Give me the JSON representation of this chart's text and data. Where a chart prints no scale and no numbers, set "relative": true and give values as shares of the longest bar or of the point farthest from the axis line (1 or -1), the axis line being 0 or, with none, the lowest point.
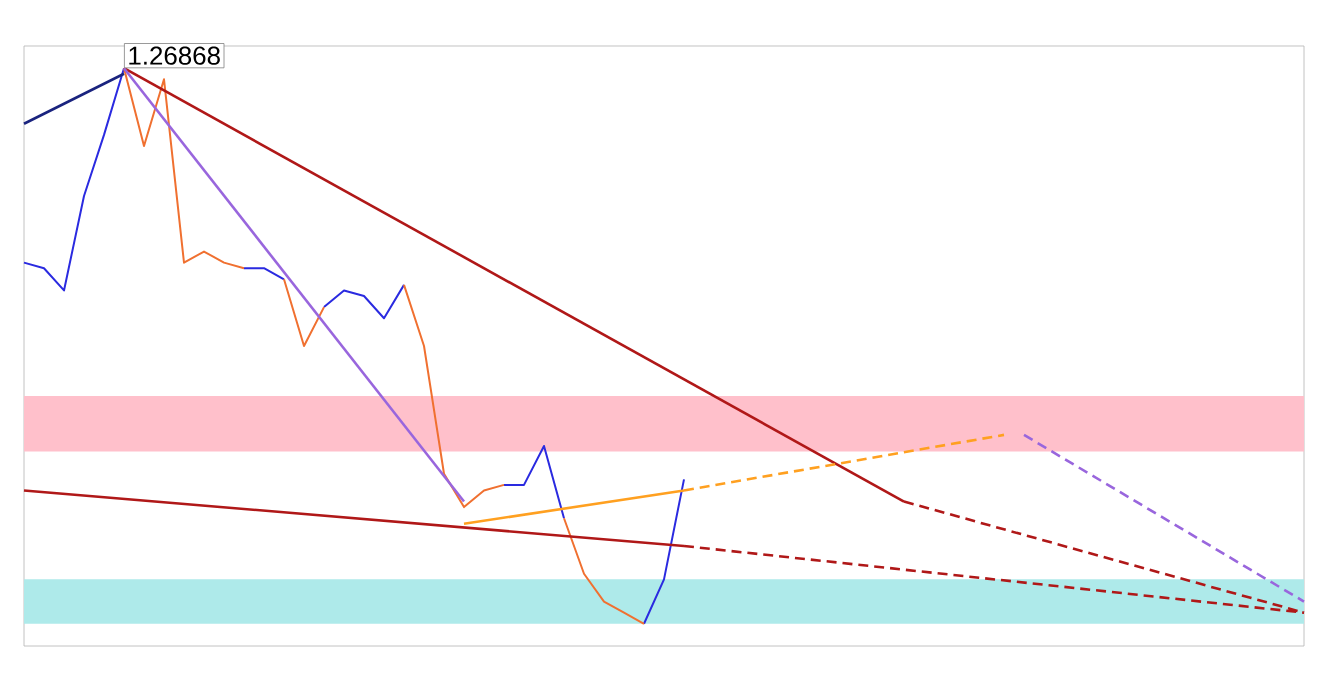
{
  "chart_data": {
    "type": "line",
    "relative": true,
    "grid": false,
    "marker": "none",
    "categories": [
      null,
      null,
      null,
      null,
      null,
      null,
      null,
      null,
      null,
      null,
      null,
      null,
      null,
      null,
      null,
      null,
      null,
      null,
      null,
      null,
      null,
      null,
      null,
      null,
      null,
      null,
      null,
      null,
      null,
      null,
      null,
      null,
      null,
      null,
      null,
      null,
      null,
      null,
      null,
      null,
      null,
      null,
      null,
      null,
      null,
      null,
      null,
      null,
      null,
      null,
      null,
      null,
      null,
      null,
      null,
      null,
      null,
      null,
      null,
      null,
      null,
      null,
      null,
      null,
      null
    ],
    "annotations": [
      "1.26868"
    ],
    "bands": [
      {
        "axis": "y",
        "from": 0.31,
        "to": 0.41,
        "color": "#ffc0cb"
      },
      {
        "axis": "y",
        "from": 0,
        "to": 0.08,
        "color": "#aeeaea"
      }
    ],
    "series": [
      {
        "color": "#2a2ae0",
        "values": [
          0.65,
          0.64,
          0.6,
          0.77,
          0.88,
          1.0,
          null,
          null,
          null,
          null,
          null,
          0.64,
          0.64,
          0.62,
          null,
          0.57,
          0.6,
          0.59,
          0.55,
          0.61,
          null,
          null,
          null,
          null,
          0.25,
          0.25,
          0.32,
          0.19,
          null,
          null,
          null,
          0,
          0.08,
          0.26,
          null,
          null,
          null,
          null,
          null,
          null,
          null,
          null,
          null,
          null,
          null,
          null,
          null,
          null,
          null,
          null,
          null,
          null,
          null,
          null,
          null,
          null,
          null,
          null,
          null,
          null,
          null,
          null,
          null,
          null,
          null
        ]
      },
      {
        "color": "#f07030",
        "values": [
          null,
          null,
          null,
          null,
          null,
          1.0,
          0.86,
          0.98,
          0.65,
          0.67,
          0.65,
          0.64,
          null,
          0.62,
          0.5,
          0.57,
          null,
          null,
          null,
          0.61,
          0.5,
          0.27,
          0.21,
          0.24,
          0.25,
          null,
          null,
          0.19,
          0.09,
          0.04,
          0.02,
          0,
          null,
          null,
          null,
          null,
          null,
          null,
          null,
          null,
          null,
          null,
          null,
          null,
          null,
          null,
          null,
          null,
          null,
          null,
          null,
          null,
          null,
          null,
          null,
          null,
          null,
          null,
          null,
          null,
          null,
          null,
          null,
          null,
          null
        ]
      },
      {
        "color": "#1a237e",
        "line_style": "solid",
        "values": [
          0.9,
          null,
          null,
          null,
          null,
          0.99,
          null,
          null,
          null,
          null,
          null,
          null,
          null,
          null,
          null,
          null,
          null,
          null,
          null,
          null,
          null,
          null,
          null,
          null,
          null,
          null,
          null,
          null,
          null,
          null,
          null,
          null,
          null,
          null,
          null,
          null,
          null,
          null,
          null,
          null,
          null,
          null,
          null,
          null,
          null,
          null,
          null,
          null,
          null,
          null,
          null,
          null,
          null,
          null,
          null,
          null,
          null,
          null,
          null,
          null,
          null,
          null,
          null,
          null,
          null
        ]
      },
      {
        "color": "#b01818",
        "line_style": "solid",
        "values": [
          null,
          null,
          null,
          null,
          null,
          1.0,
          null,
          null,
          null,
          null,
          null,
          null,
          null,
          null,
          null,
          null,
          null,
          null,
          null,
          null,
          null,
          null,
          null,
          null,
          null,
          null,
          null,
          null,
          null,
          null,
          null,
          null,
          null,
          null,
          null,
          null,
          null,
          null,
          null,
          null,
          null,
          null,
          null,
          null,
          0.22,
          null,
          null,
          null,
          null,
          null,
          null,
          null,
          null,
          null,
          null,
          null,
          null,
          null,
          null,
          null,
          null,
          null,
          null,
          null,
          null
        ]
      },
      {
        "color": "#b01818",
        "line_style": "dashed",
        "values": [
          null,
          null,
          null,
          null,
          null,
          null,
          null,
          null,
          null,
          null,
          null,
          null,
          null,
          null,
          null,
          null,
          null,
          null,
          null,
          null,
          null,
          null,
          null,
          null,
          null,
          null,
          null,
          null,
          null,
          null,
          null,
          null,
          null,
          null,
          null,
          null,
          null,
          null,
          null,
          null,
          null,
          null,
          null,
          null,
          0.22,
          null,
          null,
          null,
          null,
          null,
          null,
          null,
          null,
          null,
          null,
          null,
          null,
          null,
          null,
          null,
          null,
          null,
          null,
          null,
          0.02
        ]
      },
      {
        "color": "#9966dd",
        "line_style": "solid",
        "values": [
          null,
          null,
          null,
          null,
          null,
          1.0,
          null,
          null,
          null,
          null,
          null,
          null,
          null,
          null,
          null,
          null,
          null,
          null,
          null,
          null,
          null,
          null,
          0.22,
          null,
          null,
          null,
          null,
          null,
          null,
          null,
          null,
          null,
          null,
          null,
          null,
          null,
          null,
          null,
          null,
          null,
          null,
          null,
          null,
          null,
          null,
          null,
          null,
          null,
          null,
          null,
          null,
          null,
          null,
          null,
          null,
          null,
          null,
          null,
          null,
          null,
          null,
          null,
          null,
          null,
          null
        ]
      },
      {
        "color": "#9966dd",
        "line_style": "dashed",
        "values": [
          null,
          null,
          null,
          null,
          null,
          null,
          null,
          null,
          null,
          null,
          null,
          null,
          null,
          null,
          null,
          null,
          null,
          null,
          null,
          null,
          null,
          null,
          null,
          null,
          null,
          null,
          null,
          null,
          null,
          null,
          null,
          null,
          null,
          null,
          null,
          null,
          null,
          null,
          null,
          null,
          null,
          null,
          null,
          null,
          null,
          null,
          null,
          null,
          null,
          null,
          0.34,
          null,
          null,
          null,
          null,
          null,
          null,
          null,
          null,
          null,
          null,
          null,
          null,
          null,
          0.04
        ]
      },
      {
        "color": "#b01818",
        "line_style": "solid",
        "values": [
          0.24,
          null,
          null,
          null,
          null,
          null,
          null,
          null,
          null,
          null,
          null,
          null,
          null,
          null,
          null,
          null,
          null,
          null,
          null,
          null,
          null,
          null,
          null,
          null,
          null,
          null,
          null,
          null,
          null,
          null,
          null,
          null,
          null,
          0.14,
          null,
          null,
          null,
          null,
          null,
          null,
          null,
          null,
          null,
          null,
          null,
          null,
          null,
          null,
          null,
          null,
          null,
          null,
          null,
          null,
          null,
          null,
          null,
          null,
          null,
          null,
          null,
          null,
          null,
          null,
          null
        ]
      },
      {
        "color": "#b01818",
        "line_style": "dashed",
        "values": [
          null,
          null,
          null,
          null,
          null,
          null,
          null,
          null,
          null,
          null,
          null,
          null,
          null,
          null,
          null,
          null,
          null,
          null,
          null,
          null,
          null,
          null,
          null,
          null,
          null,
          null,
          null,
          null,
          null,
          null,
          null,
          null,
          null,
          0.14,
          null,
          null,
          null,
          null,
          null,
          null,
          null,
          null,
          null,
          null,
          null,
          null,
          null,
          null,
          null,
          null,
          null,
          null,
          null,
          null,
          null,
          null,
          null,
          null,
          null,
          null,
          null,
          null,
          null,
          null,
          0.02
        ]
      },
      {
        "color": "#ffa020",
        "line_style": "solid",
        "values": [
          null,
          null,
          null,
          null,
          null,
          null,
          null,
          null,
          null,
          null,
          null,
          null,
          null,
          null,
          null,
          null,
          null,
          null,
          null,
          null,
          null,
          null,
          0.18,
          null,
          null,
          null,
          null,
          null,
          null,
          null,
          null,
          null,
          null,
          0.24,
          null,
          null,
          null,
          null,
          null,
          null,
          null,
          null,
          null,
          null,
          null,
          null,
          null,
          null,
          null,
          null,
          null,
          null,
          null,
          null,
          null,
          null,
          null,
          null,
          null,
          null,
          null,
          null,
          null,
          null,
          null
        ]
      },
      {
        "color": "#ffa020",
        "line_style": "dashed",
        "values": [
          null,
          null,
          null,
          null,
          null,
          null,
          null,
          null,
          null,
          null,
          null,
          null,
          null,
          null,
          null,
          null,
          null,
          null,
          null,
          null,
          null,
          null,
          null,
          null,
          null,
          null,
          null,
          null,
          null,
          null,
          null,
          null,
          null,
          0.24,
          null,
          null,
          null,
          null,
          null,
          null,
          null,
          null,
          null,
          null,
          null,
          null,
          null,
          null,
          null,
          0.34,
          null,
          null,
          null,
          null,
          null,
          null,
          null,
          null,
          null,
          null,
          null,
          null,
          null,
          null,
          null
        ]
      }
    ]
  }
}
